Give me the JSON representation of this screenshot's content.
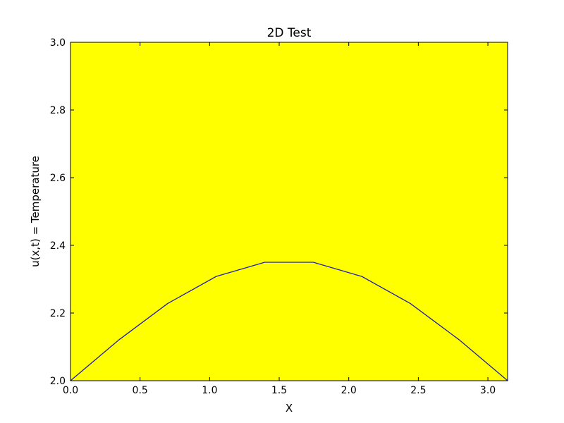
{
  "chart_data": {
    "type": "line",
    "title": "2D Test",
    "xlabel": "X",
    "ylabel": "u(x,t) = Temperature",
    "xlim": [
      0,
      3.14159
    ],
    "ylim": [
      2.0,
      3.0
    ],
    "xticks": [
      "0.0",
      "0.5",
      "1.0",
      "1.5",
      "2.0",
      "2.5",
      "3.0"
    ],
    "yticks": [
      "2.0",
      "2.2",
      "2.4",
      "2.6",
      "2.8",
      "3.0"
    ],
    "grid": false,
    "background_color": "#ffff00",
    "line_color": "#1f1faa",
    "series": [
      {
        "x": [
          0.0,
          0.349,
          0.698,
          1.047,
          1.396,
          1.745,
          2.094,
          2.443,
          2.793,
          3.142
        ],
        "y": [
          2.0,
          2.121,
          2.228,
          2.308,
          2.35,
          2.35,
          2.308,
          2.228,
          2.121,
          2.0
        ]
      }
    ]
  }
}
